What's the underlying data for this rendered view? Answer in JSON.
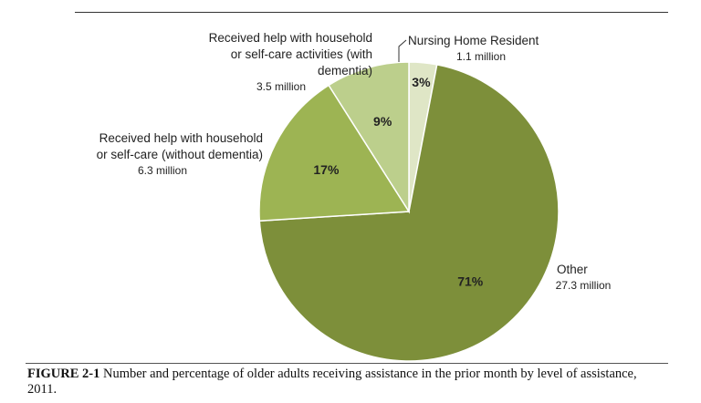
{
  "chart_data": {
    "type": "pie",
    "slices": [
      {
        "name": "Nursing Home Resident",
        "label_lines": [
          "Nursing Home Resident"
        ],
        "amount": "1.1 million",
        "percent": 3,
        "percent_label": "3%",
        "color": "#dfe6c6"
      },
      {
        "name": "Other",
        "label_lines": [
          "Other"
        ],
        "amount": "27.3 million",
        "percent": 71,
        "percent_label": "71%",
        "color": "#7d8f3a"
      },
      {
        "name": "Received help with household or self-care (without dementia)",
        "label_lines": [
          "Received help with household",
          "or self-care (without dementia)"
        ],
        "amount": "6.3 million",
        "percent": 17,
        "percent_label": "17%",
        "color": "#9db453"
      },
      {
        "name": "Received help with household or self-care activities (with dementia)",
        "label_lines": [
          "Received help with household",
          "or self-care activities (with",
          "dementia)"
        ],
        "amount": "3.5 million",
        "percent": 9,
        "percent_label": "9%",
        "color": "#bccf8c"
      }
    ],
    "start_angle_deg": 0,
    "direction": "clockwise",
    "legend": "none"
  },
  "caption": {
    "label": "FIGURE 2-1",
    "text": " Number and percentage of older adults receiving assistance in the prior month by level of assistance, 2011."
  }
}
